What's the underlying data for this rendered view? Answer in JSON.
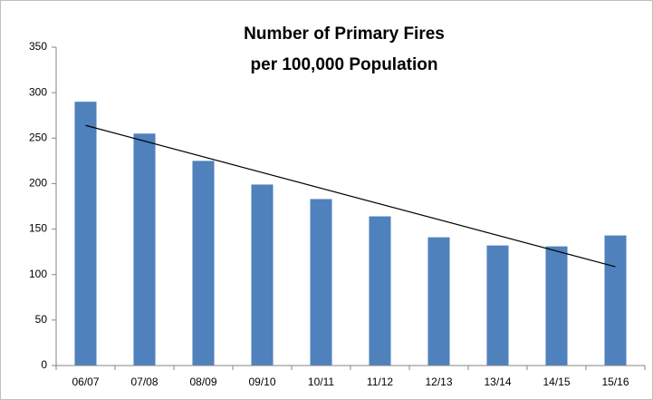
{
  "chart_data": {
    "type": "bar",
    "title": [
      "Number of Primary Fires",
      "per 100,000 Population"
    ],
    "categories": [
      "06/07",
      "07/08",
      "08/09",
      "09/10",
      "10/11",
      "11/12",
      "12/13",
      "13/14",
      "14/15",
      "15/16"
    ],
    "values": [
      290,
      255,
      225,
      199,
      183,
      164,
      141,
      132,
      131,
      143
    ],
    "color": "#4f81bd",
    "trendline": "linear",
    "ylim": [
      0,
      350
    ],
    "yticks": [
      0,
      50,
      100,
      150,
      200,
      250,
      300,
      350
    ],
    "grid": false
  }
}
